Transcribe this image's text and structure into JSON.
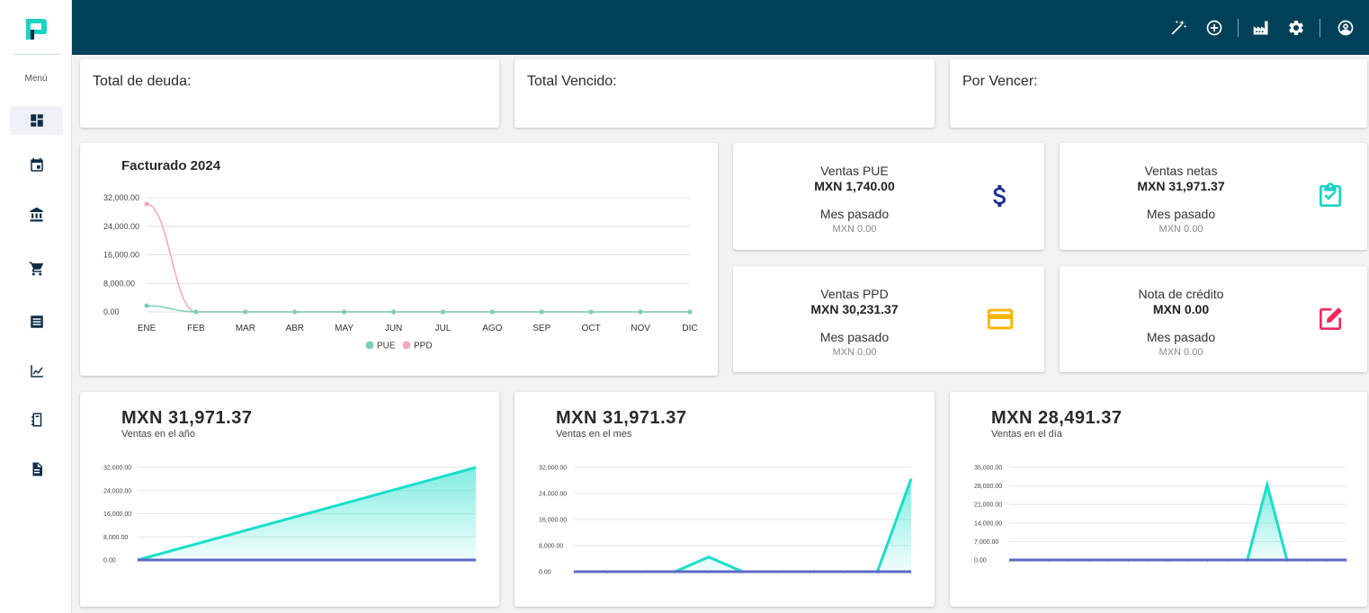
{
  "sidebar": {
    "menu_label": "Menú",
    "items": [
      {
        "name": "dashboard",
        "icon": "dashboard-icon",
        "active": true
      },
      {
        "name": "calendar",
        "icon": "calendar-icon"
      },
      {
        "name": "bank",
        "icon": "bank-icon"
      },
      {
        "name": "cart",
        "icon": "cart-icon"
      },
      {
        "name": "list",
        "icon": "list-icon"
      },
      {
        "name": "analytics",
        "icon": "chart-line-icon"
      },
      {
        "name": "notebook",
        "icon": "notebook-icon"
      },
      {
        "name": "document",
        "icon": "document-icon"
      }
    ]
  },
  "header": {
    "icons": [
      "magic-wand-icon",
      "add-circle-icon",
      "factory-icon",
      "gear-icon",
      "account-circle-icon"
    ],
    "background": "#004058"
  },
  "summary": {
    "total_deuda": "Total de deuda:",
    "total_vencido": "Total Vencido:",
    "por_vencer": "Por Vencer:"
  },
  "stats": {
    "ventas_pue": {
      "label": "Ventas PUE",
      "value": "MXN 1,740.00",
      "prev_label": "Mes pasado",
      "prev_value": "MXN 0.00",
      "icon": "dollar-icon",
      "color": "#1a2a9c"
    },
    "ventas_netas": {
      "label": "Ventas netas",
      "value": "MXN 31,971.37",
      "prev_label": "Mes pasado",
      "prev_value": "MXN 0.00",
      "icon": "clipboard-check-icon",
      "color": "#19d3c5"
    },
    "ventas_ppd": {
      "label": "Ventas PPD",
      "value": "MXN 30,231.37",
      "prev_label": "Mes pasado",
      "prev_value": "MXN 0.00",
      "icon": "credit-card-icon",
      "color": "#ffb300"
    },
    "nota_credito": {
      "label": "Nota de crédito",
      "value": "MXN 0.00",
      "prev_label": "Mes pasado",
      "prev_value": "MXN 0.00",
      "icon": "edit-icon",
      "color": "#ee2a5c"
    }
  },
  "chart_data": [
    {
      "type": "line",
      "title": "Facturado 2024",
      "categories": [
        "ENE",
        "FEB",
        "MAR",
        "ABR",
        "MAY",
        "JUN",
        "JUL",
        "AGO",
        "SEP",
        "OCT",
        "NOV",
        "DIC"
      ],
      "ylim": [
        0,
        32000
      ],
      "yticks": [
        "32,000.00",
        "24,000.00",
        "16,000.00",
        "8,000.00",
        "0.00"
      ],
      "yticks_values": [
        32000,
        24000,
        16000,
        8000,
        0
      ],
      "legend": "bottom",
      "series": [
        {
          "name": "PUE",
          "color": "#7fcdbb",
          "values": [
            1740,
            0,
            0,
            0,
            0,
            0,
            0,
            0,
            0,
            0,
            0,
            0
          ]
        },
        {
          "name": "PPD",
          "color": "#f4a7b9",
          "values": [
            30231.37,
            0,
            0,
            0,
            0,
            0,
            0,
            0,
            0,
            0,
            0,
            0
          ]
        }
      ]
    },
    {
      "type": "area",
      "value": "MXN 31,971.37",
      "subtitle": "Ventas en el año",
      "ylim": [
        0,
        32000
      ],
      "yticks": [
        "32,000.00",
        "24,000.00",
        "16,000.00",
        "8,000.00",
        "0.00"
      ],
      "yticks_values": [
        32000,
        24000,
        16000,
        8000,
        0
      ],
      "x": [
        0,
        1
      ],
      "series": [
        {
          "color": "#19dfc9",
          "values": [
            0,
            31971.37
          ]
        },
        {
          "color": "#5c6bc0",
          "values": [
            0,
            0
          ]
        }
      ]
    },
    {
      "type": "area",
      "value": "MXN 31,971.37",
      "subtitle": "Ventas en el mes",
      "ylim": [
        0,
        32000
      ],
      "yticks": [
        "32,000.00",
        "24,000.00",
        "16,000.00",
        "8,000.00",
        "0.00"
      ],
      "yticks_values": [
        32000,
        24000,
        16000,
        8000,
        0
      ],
      "x": [
        0,
        1,
        2,
        3,
        4,
        5,
        6,
        7,
        8,
        9,
        10
      ],
      "series": [
        {
          "color": "#19dfc9",
          "values": [
            0,
            0,
            0,
            0,
            4500,
            0,
            0,
            0,
            0,
            0,
            28500
          ]
        },
        {
          "color": "#5c6bc0",
          "values": [
            0,
            0,
            0,
            0,
            0,
            0,
            0,
            0,
            0,
            0,
            0
          ]
        }
      ]
    },
    {
      "type": "area",
      "value": "MXN 28,491.37",
      "subtitle": "Ventas en el día",
      "ylim": [
        0,
        35000
      ],
      "yticks": [
        "35,000.00",
        "28,000.00",
        "21,000.00",
        "14,000.00",
        "7,000.00",
        "0.00"
      ],
      "yticks_values": [
        35000,
        28000,
        21000,
        14000,
        7000,
        0
      ],
      "x": [
        0,
        1,
        2,
        3,
        4,
        5,
        6,
        7,
        8,
        9,
        10,
        11,
        12,
        13,
        14,
        15,
        16,
        17
      ],
      "series": [
        {
          "color": "#19dfc9",
          "values": [
            0,
            0,
            0,
            0,
            0,
            0,
            0,
            0,
            0,
            0,
            0,
            0,
            0,
            28491.37,
            0,
            0,
            0,
            0
          ]
        },
        {
          "color": "#5c6bc0",
          "values": [
            0,
            0,
            0,
            0,
            0,
            0,
            0,
            0,
            0,
            0,
            0,
            0,
            0,
            0,
            0,
            0,
            0,
            0
          ]
        }
      ]
    }
  ]
}
